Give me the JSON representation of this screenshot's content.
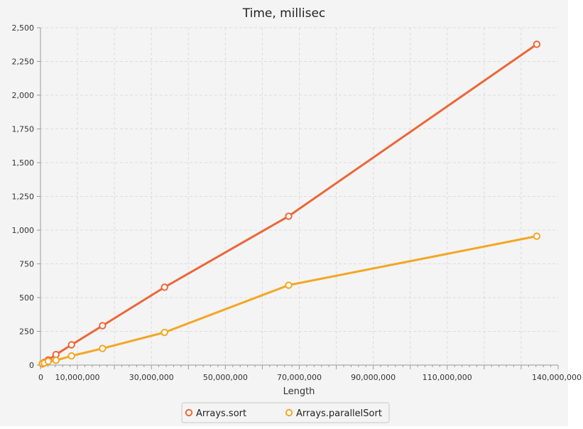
{
  "chart_data": {
    "type": "line",
    "title": "Time, millisec",
    "xlabel": "Length",
    "ylabel": "",
    "xlim": [
      0,
      140000000
    ],
    "ylim": [
      0,
      2500
    ],
    "x_ticks": [
      {
        "value": 0,
        "label": "0"
      },
      {
        "value": 10000000,
        "label": "10,000,000"
      },
      {
        "value": 30000000,
        "label": "30,000,000"
      },
      {
        "value": 50000000,
        "label": "50,000,000"
      },
      {
        "value": 70000000,
        "label": "70,000,000"
      },
      {
        "value": 90000000,
        "label": "90,000,000"
      },
      {
        "value": 110000000,
        "label": "110,000,000"
      },
      {
        "value": 140000000,
        "label": "140,000,000"
      }
    ],
    "y_ticks": [
      {
        "value": 0,
        "label": "0"
      },
      {
        "value": 250,
        "label": "250"
      },
      {
        "value": 500,
        "label": "500"
      },
      {
        "value": 750,
        "label": "750"
      },
      {
        "value": 1000,
        "label": "1,000"
      },
      {
        "value": 1250,
        "label": "1,250"
      },
      {
        "value": 1500,
        "label": "1,500"
      },
      {
        "value": 1750,
        "label": "1,750"
      },
      {
        "value": 2000,
        "label": "2,000"
      },
      {
        "value": 2250,
        "label": "2,250"
      },
      {
        "value": 2500,
        "label": "2,500"
      }
    ],
    "grid": true,
    "legend_position": "bottom-center",
    "series": [
      {
        "name": "Arrays.sort",
        "color": "#ec6637",
        "x": [
          524288,
          1048576,
          2097152,
          4194304,
          8388608,
          16777216,
          33554432,
          67108864,
          134217728
        ],
        "y": [
          9,
          20,
          38,
          78,
          150,
          292,
          577,
          1103,
          2377
        ]
      },
      {
        "name": "Arrays.parallelSort",
        "color": "#f4a623",
        "x": [
          524288,
          1048576,
          2097152,
          4194304,
          8388608,
          16777216,
          33554432,
          67108864,
          134217728
        ],
        "y": [
          12,
          15,
          28,
          35,
          68,
          123,
          242,
          592,
          955
        ]
      }
    ]
  }
}
